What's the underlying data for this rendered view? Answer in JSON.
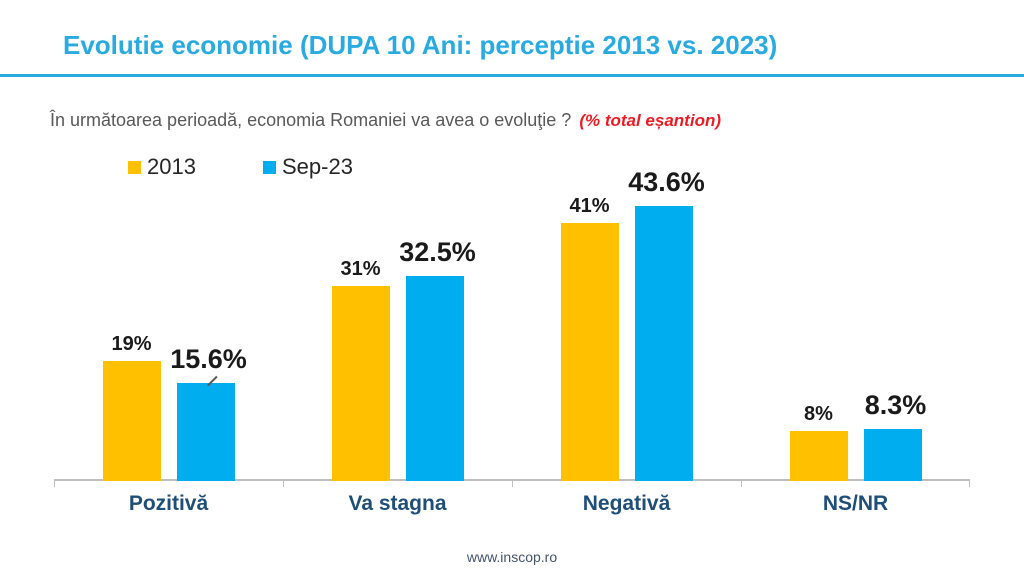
{
  "header": {
    "title": "Evolutie economie (DUPA 10 Ani: perceptie 2013 vs. 2023)"
  },
  "subtitle": {
    "question": "În următoarea perioadă, economia Romaniei va avea o evoluţie ?",
    "note": "(% total eșantion)"
  },
  "legend": [
    {
      "label": "2013",
      "color": "#FFC000"
    },
    {
      "label": "Sep-23",
      "color": "#00AEEF"
    }
  ],
  "chart_data": {
    "type": "bar",
    "title": "Evolutie economie (DUPA 10 Ani: perceptie 2013 vs. 2023)",
    "subtitle": "În următoarea perioadă, economia Romaniei va avea o evoluţie ? (% total eșantion)",
    "categories": [
      "Pozitivă",
      "Va stagna",
      "Negativă",
      "NS/NR"
    ],
    "series": [
      {
        "name": "2013",
        "color": "#FFC000",
        "values": [
          19,
          31,
          41,
          8
        ],
        "labels": [
          "19%",
          "31%",
          "41%",
          "8%"
        ]
      },
      {
        "name": "Sep-23",
        "color": "#00AEEF",
        "values": [
          15.6,
          32.5,
          43.6,
          8.3
        ],
        "labels": [
          "15.6%",
          "32.5%",
          "43.6%",
          "8.3%"
        ]
      }
    ],
    "ylim": [
      0,
      50
    ],
    "grid": false,
    "legend_position": "top-left",
    "xlabel": "",
    "ylabel": "",
    "annotations": {
      "leader_category_index": 0,
      "leader_series_index": 1
    }
  },
  "footer": {
    "url": "www.inscop.ro"
  },
  "colors": {
    "accent": "#29ABE2",
    "bar_2013": "#FFC000",
    "bar_sep23": "#00AEEF",
    "category_label": "#1F4E79",
    "axis": "#BFBFBF",
    "subtitle_text": "#595959",
    "subtitle_note": "#ED1C24",
    "footer_text": "#44546A"
  }
}
